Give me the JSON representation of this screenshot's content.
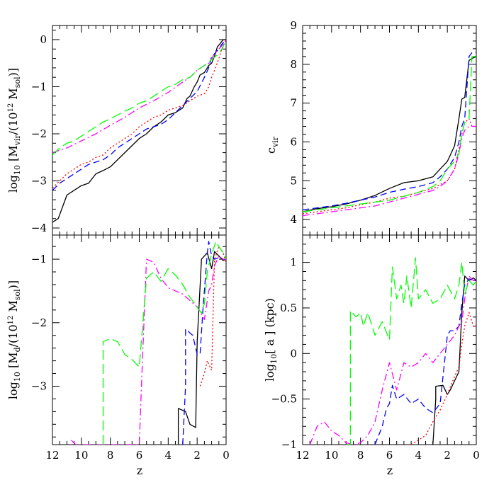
{
  "chart_data": [
    {
      "panel": "top-left",
      "type": "line",
      "ylabel": "log10 [Mvir/(10^12 Msol)]",
      "ylabel_parts": {
        "a": "log",
        "b": "10",
        "c": " [M",
        "d": "vir",
        "e": "/(10",
        "f": "12",
        "g": " M",
        "h": "sol",
        "i": ")]"
      },
      "xlim": [
        12,
        0
      ],
      "ylim": [
        -4.15,
        0.3
      ],
      "xticks": [
        "12",
        "10",
        "8",
        "6",
        "4",
        "2",
        "0"
      ],
      "yticks": [
        "0",
        "−1",
        "−2",
        "−3",
        "−4"
      ],
      "ytick_values": [
        0,
        -1,
        -2,
        -3,
        -4
      ],
      "series": [
        {
          "name": "black",
          "color": "#000000",
          "dash": "",
          "x": [
            12,
            11.6,
            11.3,
            11,
            10.5,
            10,
            9.5,
            9,
            8.5,
            8,
            7.5,
            7,
            6.5,
            6,
            5.5,
            5,
            4.5,
            4,
            3.5,
            3,
            2.7,
            2.5,
            2.2,
            2,
            1.8,
            1.5,
            1.2,
            1,
            0.8,
            0.6,
            0.4,
            0.2,
            0
          ],
          "y": [
            -3.88,
            -3.8,
            -3.55,
            -3.3,
            -3.2,
            -3.1,
            -3.05,
            -2.85,
            -2.78,
            -2.7,
            -2.55,
            -2.4,
            -2.25,
            -2.1,
            -2.0,
            -1.85,
            -1.75,
            -1.6,
            -1.55,
            -1.45,
            -1.25,
            -1.2,
            -1.0,
            -0.9,
            -0.75,
            -0.7,
            -0.55,
            -0.5,
            -0.35,
            -0.15,
            -0.08,
            0.0,
            0.0
          ]
        },
        {
          "name": "blue",
          "color": "#0000ff",
          "dash": "9,5",
          "x": [
            12,
            11.5,
            11,
            10.5,
            10,
            9.5,
            9,
            8.5,
            8,
            7.5,
            7,
            6.5,
            6,
            5.5,
            5,
            4.5,
            4,
            3.5,
            3,
            2.5,
            2,
            1.5,
            1.2,
            1,
            0.8,
            0.5,
            0.3,
            0
          ],
          "y": [
            -3.2,
            -3.05,
            -2.95,
            -2.85,
            -2.75,
            -2.65,
            -2.6,
            -2.55,
            -2.45,
            -2.3,
            -2.2,
            -2.1,
            -2.0,
            -1.9,
            -1.85,
            -1.8,
            -1.7,
            -1.55,
            -1.4,
            -1.25,
            -1.1,
            -0.8,
            -0.6,
            -0.35,
            -0.3,
            -0.2,
            -0.1,
            0.0
          ]
        },
        {
          "name": "red",
          "color": "#ff0000",
          "dash": "2,3",
          "x": [
            12,
            11.5,
            11,
            10.5,
            10,
            9.5,
            9,
            8.5,
            8,
            7.5,
            7,
            6.5,
            6,
            5.5,
            5,
            4.5,
            4,
            3.5,
            3,
            2.5,
            2,
            1.5,
            1.2,
            1,
            0.8,
            0.5,
            0.3,
            0
          ],
          "y": [
            -3.15,
            -3.0,
            -2.85,
            -2.75,
            -2.65,
            -2.6,
            -2.5,
            -2.45,
            -2.3,
            -2.2,
            -2.1,
            -2.0,
            -1.85,
            -1.75,
            -1.65,
            -1.6,
            -1.5,
            -1.45,
            -1.4,
            -1.3,
            -1.2,
            -1.15,
            -1.0,
            -0.8,
            -0.65,
            -0.4,
            -0.2,
            0.0
          ]
        },
        {
          "name": "magenta",
          "color": "#ff00ff",
          "dash": "10,4,2,4",
          "x": [
            12,
            11,
            10,
            9,
            8,
            7,
            6,
            5,
            4,
            3,
            2.5,
            2,
            1.5,
            1.2,
            1,
            0.8,
            0.5,
            0.2,
            0
          ],
          "y": [
            -2.4,
            -2.3,
            -2.15,
            -2.0,
            -1.82,
            -1.65,
            -1.45,
            -1.3,
            -1.12,
            -0.9,
            -0.8,
            -0.65,
            -0.55,
            -0.5,
            -0.4,
            -0.3,
            -0.2,
            -0.1,
            0.0
          ]
        },
        {
          "name": "green",
          "color": "#00ff00",
          "dash": "14,6",
          "x": [
            12,
            11.5,
            11,
            10.5,
            10,
            9.5,
            9,
            8.5,
            8,
            7.5,
            7,
            6.5,
            6,
            5.5,
            5,
            4.5,
            4,
            3.5,
            3,
            2.5,
            2,
            1.5,
            1,
            0.5,
            0.2,
            0
          ],
          "y": [
            -2.45,
            -2.3,
            -2.2,
            -2.15,
            -2.05,
            -1.95,
            -1.85,
            -1.75,
            -1.68,
            -1.6,
            -1.52,
            -1.45,
            -1.35,
            -1.3,
            -1.2,
            -1.1,
            -1.0,
            -0.95,
            -0.85,
            -0.8,
            -0.65,
            -0.55,
            -0.42,
            -0.3,
            -0.15,
            0.0
          ]
        }
      ]
    },
    {
      "panel": "top-right",
      "type": "line",
      "ylabel": "c_vir",
      "ylabel_parts": {
        "a": "c",
        "b": "vir"
      },
      "xlim": [
        12,
        0
      ],
      "ylim": [
        3.6,
        9.0
      ],
      "xticks": [
        "12",
        "10",
        "8",
        "6",
        "4",
        "2",
        "0"
      ],
      "yticks": [
        "4",
        "5",
        "6",
        "7",
        "8",
        "9"
      ],
      "ytick_values": [
        4,
        5,
        6,
        7,
        8,
        9
      ],
      "series": [
        {
          "name": "black",
          "color": "#000000",
          "dash": "",
          "x": [
            12,
            11,
            10,
            9,
            8,
            7,
            6,
            5,
            4,
            3,
            2.5,
            2,
            1.5,
            1.2,
            1,
            0.8,
            0.5,
            0.3,
            0
          ],
          "y": [
            4.2,
            4.28,
            4.33,
            4.4,
            4.5,
            4.62,
            4.8,
            4.95,
            5.0,
            5.1,
            5.3,
            5.5,
            5.9,
            6.6,
            7.1,
            7.15,
            8.1,
            8.15,
            8.2
          ]
        },
        {
          "name": "blue",
          "color": "#0000ff",
          "dash": "9,5",
          "x": [
            12,
            11,
            10,
            9,
            8,
            7,
            6,
            5,
            4,
            3,
            2.5,
            2,
            1.5,
            1.2,
            1,
            0.8,
            0.5,
            0.3,
            0
          ],
          "y": [
            4.25,
            4.3,
            4.35,
            4.42,
            4.5,
            4.58,
            4.7,
            4.78,
            4.85,
            4.95,
            5.1,
            5.3,
            5.6,
            6.0,
            6.4,
            6.6,
            8.2,
            8.3,
            8.3
          ]
        },
        {
          "name": "red",
          "color": "#ff0000",
          "dash": "2,3",
          "x": [
            12,
            11,
            10,
            9,
            8,
            7,
            6,
            5,
            4,
            3,
            2.5,
            2,
            1.5,
            1.2,
            1,
            0.8,
            0.5,
            0.3,
            0
          ],
          "y": [
            4.15,
            4.2,
            4.25,
            4.3,
            4.38,
            4.45,
            4.55,
            4.6,
            4.7,
            4.8,
            4.9,
            5.0,
            5.3,
            5.8,
            6.2,
            6.5,
            6.6,
            6.4,
            6.4
          ]
        },
        {
          "name": "magenta",
          "color": "#ff00ff",
          "dash": "10,4,2,4",
          "x": [
            12,
            11,
            10,
            9,
            8,
            7,
            6,
            5,
            4,
            3,
            2.5,
            2,
            1.5,
            1.2,
            1,
            0.8,
            0.5,
            0.3,
            0
          ],
          "y": [
            4.1,
            4.15,
            4.2,
            4.25,
            4.3,
            4.35,
            4.45,
            4.55,
            4.65,
            4.75,
            4.85,
            5.0,
            5.3,
            5.7,
            6.1,
            6.3,
            6.4,
            6.4,
            6.4
          ]
        },
        {
          "name": "green",
          "color": "#00ff00",
          "dash": "14,6",
          "x": [
            12,
            11,
            10,
            9,
            8,
            7,
            6,
            5,
            4,
            3,
            2.5,
            2,
            1.5,
            1.2,
            1,
            0.8,
            0.5,
            0.3,
            0
          ],
          "y": [
            4.2,
            4.25,
            4.3,
            4.35,
            4.4,
            4.45,
            4.5,
            4.6,
            4.7,
            4.85,
            5.0,
            5.3,
            5.5,
            5.7,
            6.2,
            6.5,
            6.6,
            8.2,
            8.2
          ]
        }
      ]
    },
    {
      "panel": "bottom-left",
      "type": "line",
      "ylabel": "log10 [Md/(10^12 Msol)]",
      "ylabel_parts": {
        "a": "log",
        "b": "10",
        "c": " [M",
        "d": "d",
        "e": "/(10",
        "f": "12",
        "g": " M",
        "h": "sol",
        "i": ")]"
      },
      "xlim": [
        12,
        0
      ],
      "ylim": [
        -3.92,
        -0.62
      ],
      "xticks": [
        "12",
        "10",
        "8",
        "6",
        "4",
        "2",
        "0"
      ],
      "yticks": [
        "−1",
        "−2",
        "−3"
      ],
      "ytick_values": [
        -1,
        -2,
        -3
      ],
      "series": [
        {
          "name": "black",
          "color": "#000000",
          "dash": "",
          "x": [
            3.3,
            3.3,
            2.8,
            2.5,
            2.1,
            2.0,
            1.7,
            1.3,
            1.0,
            0.8,
            0.5,
            0.2,
            0
          ],
          "y": [
            -3.92,
            -3.35,
            -3.4,
            -3.6,
            -3.65,
            -2.3,
            -1.0,
            -0.9,
            -1.15,
            -0.88,
            -0.95,
            -1.02,
            -1.0
          ]
        },
        {
          "name": "blue",
          "color": "#0000ff",
          "dash": "9,5",
          "x": [
            3.0,
            2.8,
            2.8,
            2.3,
            2.0,
            1.8,
            1.6,
            1.3,
            1.2,
            1.0,
            0.8,
            0.5,
            0.2,
            0
          ],
          "y": [
            -3.92,
            -3.0,
            -2.1,
            -2.2,
            -2.5,
            -2.5,
            -1.8,
            -0.9,
            -0.72,
            -0.95,
            -1.0,
            -0.98,
            -1.0,
            -1.0
          ]
        },
        {
          "name": "red",
          "color": "#ff0000",
          "dash": "2,3",
          "x": [
            1.8,
            1.5,
            1.3,
            1.0,
            0.8,
            0.5,
            0.2,
            0
          ],
          "y": [
            -3.0,
            -2.8,
            -2.6,
            -2.75,
            -1.0,
            -0.8,
            -0.9,
            -1.05
          ]
        },
        {
          "name": "magenta",
          "color": "#ff00ff",
          "dash": "10,4,2,4",
          "x": [
            10.7,
            10.4,
            6.0,
            5.8,
            5.5,
            5.0,
            4.5,
            4.0,
            3.0,
            2.0,
            1.5,
            1.2,
            1.0,
            0.8,
            0.5,
            0.2,
            0
          ],
          "y": [
            -3.85,
            -3.92,
            -3.92,
            -2.7,
            -1.0,
            -1.05,
            -1.3,
            -1.45,
            -1.55,
            -1.75,
            -1.95,
            -1.5,
            -1.4,
            -1.1,
            -0.95,
            -1.0,
            -1.0
          ]
        },
        {
          "name": "green",
          "color": "#00ff00",
          "dash": "14,6",
          "x": [
            8.5,
            8.5,
            8.0,
            7.5,
            7.0,
            6.5,
            6.0,
            5.5,
            5.0,
            4.5,
            4.0,
            3.5,
            3.0,
            2.5,
            2.0,
            1.7,
            1.5,
            1.3,
            1.0,
            0.7,
            0.5,
            0.2,
            0
          ],
          "y": [
            -3.92,
            -2.3,
            -2.25,
            -2.3,
            -2.5,
            -2.58,
            -2.7,
            -1.3,
            -1.2,
            -1.35,
            -1.15,
            -1.25,
            -1.4,
            -1.6,
            -1.75,
            -1.85,
            -1.7,
            -1.2,
            -0.92,
            -0.72,
            -0.8,
            -0.9,
            -1.0
          ]
        }
      ]
    },
    {
      "panel": "bottom-right",
      "type": "line",
      "ylabel": "log10[ a ] (kpc)",
      "ylabel_parts": {
        "a": "log",
        "b": "10",
        "c": "[ a ] (kpc)"
      },
      "xlabel": "z",
      "xlim": [
        12,
        0
      ],
      "ylim": [
        -1.0,
        1.3
      ],
      "xticks": [
        "12",
        "10",
        "8",
        "6",
        "4",
        "2",
        "0"
      ],
      "yticks": [
        "1",
        "0.5",
        "0",
        "−0.5",
        "−1"
      ],
      "ytick_values": [
        1,
        0.5,
        0,
        -0.5,
        -1
      ],
      "series": [
        {
          "name": "black",
          "color": "#000000",
          "dash": "",
          "x": [
            3.0,
            2.8,
            2.8,
            2.3,
            2.0,
            1.8,
            1.5,
            1.2,
            1.0,
            0.8,
            0.5,
            0.2,
            0
          ],
          "y": [
            -1.0,
            -0.5,
            -0.36,
            -0.35,
            -0.45,
            -0.4,
            -0.3,
            -0.2,
            0.45,
            0.85,
            0.8,
            0.83,
            0.8
          ]
        },
        {
          "name": "blue",
          "color": "#0000ff",
          "dash": "9,5",
          "x": [
            7.0,
            6.5,
            6.2,
            6.0,
            5.8,
            5.5,
            5.0,
            4.5,
            4.0,
            3.5,
            3.0,
            2.5,
            2.0,
            1.8,
            1.5,
            1.2,
            1.0,
            0.8,
            0.5,
            0.2,
            0
          ],
          "y": [
            -1.0,
            -0.8,
            -0.6,
            -0.55,
            -0.35,
            -0.5,
            -0.45,
            -0.55,
            -0.5,
            -0.6,
            -0.65,
            -0.55,
            0.2,
            0.25,
            0.25,
            0.3,
            0.55,
            0.75,
            0.82,
            0.8,
            0.8
          ]
        },
        {
          "name": "red",
          "color": "#ff0000",
          "dash": "2,3",
          "x": [
            4.5,
            4.0,
            3.5,
            3.0,
            2.5,
            2.0,
            1.5,
            1.2,
            1.0,
            0.8,
            0.5,
            0.2,
            0
          ],
          "y": [
            -1.0,
            -0.95,
            -0.9,
            -0.75,
            -0.62,
            -0.45,
            -0.25,
            -0.15,
            0.1,
            0.3,
            0.45,
            0.3,
            0.3
          ]
        },
        {
          "name": "magenta",
          "color": "#ff00ff",
          "dash": "10,4,2,4",
          "x": [
            11.5,
            11.0,
            10.5,
            10.0,
            9.5,
            9.0,
            8.5,
            8.0,
            7.5,
            7.0,
            6.5,
            6.0,
            5.5,
            5.0,
            4.5,
            4.0,
            3.5,
            3.0,
            2.5,
            2.0,
            1.5,
            1.2,
            1.0,
            0.8,
            0.5,
            0.2,
            0
          ],
          "y": [
            -1.0,
            -0.8,
            -0.75,
            -0.85,
            -0.9,
            -0.98,
            -1.0,
            -0.98,
            -0.9,
            -0.75,
            -0.4,
            -0.1,
            -0.4,
            -0.1,
            -0.15,
            -0.1,
            0.0,
            -0.1,
            0.0,
            0.1,
            0.2,
            0.3,
            0.35,
            0.6,
            0.85,
            0.8,
            0.8
          ]
        },
        {
          "name": "green",
          "color": "#00ff00",
          "dash": "14,6",
          "x": [
            9.0,
            8.7,
            8.7,
            8.3,
            8.0,
            7.8,
            7.5,
            7.0,
            6.5,
            6.0,
            5.8,
            5.5,
            5.2,
            5.0,
            4.8,
            4.5,
            4.2,
            4.0,
            3.5,
            3.0,
            2.5,
            2.0,
            1.5,
            1.2,
            1.0,
            0.8,
            0.5,
            0.2,
            0
          ],
          "y": [
            -1.0,
            -1.0,
            0.47,
            0.4,
            0.45,
            0.3,
            0.45,
            0.2,
            0.35,
            0.15,
            0.95,
            0.6,
            0.75,
            0.55,
            0.85,
            0.5,
            1.05,
            0.6,
            0.7,
            0.55,
            0.6,
            0.75,
            0.6,
            0.75,
            1.0,
            0.65,
            0.8,
            0.75,
            0.8
          ]
        }
      ]
    }
  ]
}
